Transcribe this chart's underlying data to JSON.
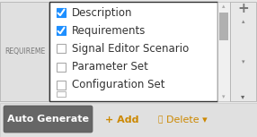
{
  "background_color": "#e8e8e8",
  "panel_bg": "#ffffff",
  "panel_border": "#333333",
  "items": [
    {
      "label": "Description",
      "checked": true
    },
    {
      "label": "Requirements",
      "checked": true
    },
    {
      "label": "Signal Editor Scenario",
      "checked": false
    },
    {
      "label": "Parameter Set",
      "checked": false
    },
    {
      "label": "Configuration Set",
      "checked": false
    }
  ],
  "check_color": "#1e8fff",
  "check_border": "#aaaaaa",
  "check_fill_unchecked": "#ffffff",
  "item_text_color": "#333333",
  "item_fontsize": 8.5,
  "scrollbar_bg": "#f0f0f0",
  "scrollbar_thumb": "#b0b0b0",
  "tab_label": "REQUIREME",
  "tab_text_color": "#777777",
  "tab_bg": "#e0e0e0",
  "btn_bg": "#666666",
  "btn_text": "Auto Generate",
  "btn_text_color": "#ffffff",
  "add_text": "+ Add",
  "add_text_color": "#cc8800",
  "delete_text": "Delete",
  "delete_text_color": "#cc8800",
  "plus_color": "#777777",
  "arrow_color": "#aaaaaa",
  "toolbar_bg": "#e0e0e0",
  "outer_arrow_color": "#888888"
}
